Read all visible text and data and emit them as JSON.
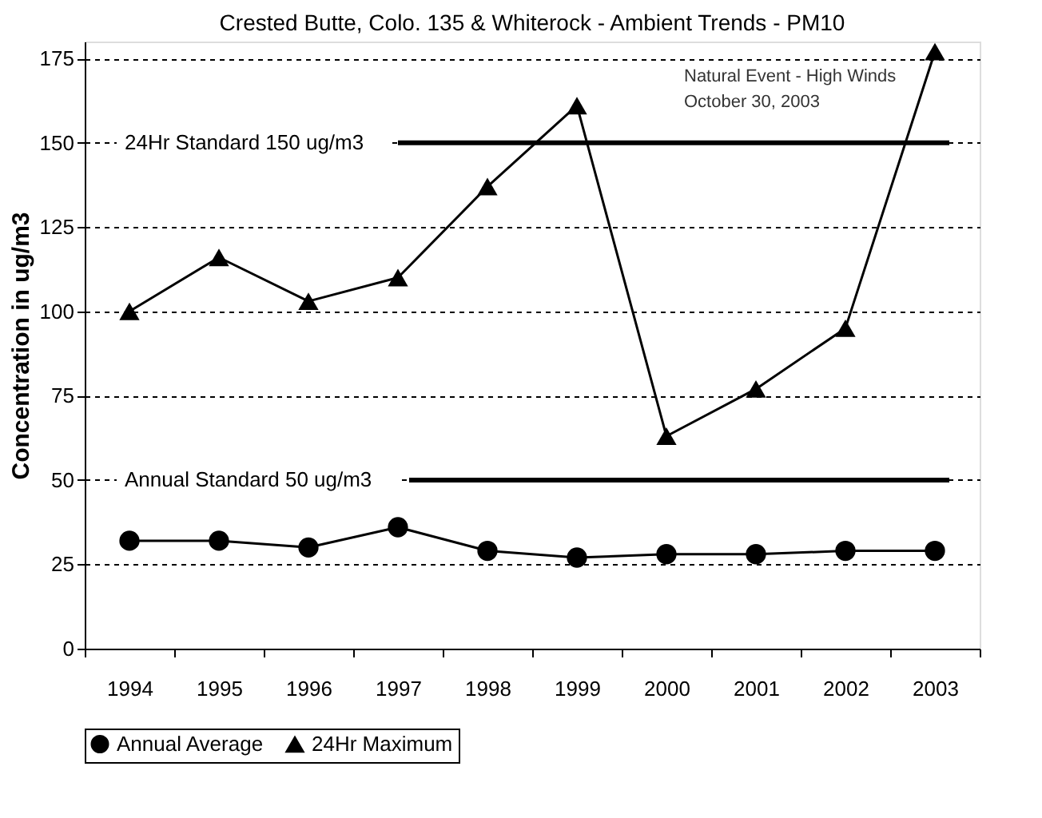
{
  "chart_data": {
    "type": "line",
    "title": "Crested Butte, Colo. 135 & Whiterock - Ambient Trends - PM10",
    "ylabel": "Concentration in ug/m3",
    "categories": [
      "1994",
      "1995",
      "1996",
      "1997",
      "1998",
      "1999",
      "2000",
      "2001",
      "2002",
      "2003"
    ],
    "series": [
      {
        "name": "Annual Average",
        "color": "#000000",
        "marker": "circle",
        "values": [
          32,
          32,
          30,
          36,
          29,
          27,
          28,
          28,
          29,
          29
        ]
      },
      {
        "name": "24Hr Maximum",
        "color": "#000000",
        "marker": "triangle",
        "values": [
          100,
          116,
          103,
          110,
          137,
          161,
          63,
          77,
          95,
          177
        ]
      }
    ],
    "ylim": [
      0,
      180
    ],
    "yticks": [
      0,
      25,
      50,
      75,
      100,
      125,
      150,
      175
    ],
    "grid": "y",
    "legend": "bottom",
    "line_style": "solid",
    "ref_lines": [
      {
        "axis": "y",
        "value": 150,
        "label": "24Hr Standard 150 ug/m3",
        "color": "#000000"
      },
      {
        "axis": "y",
        "value": 50,
        "label": "Annual Standard 50 ug/m3",
        "color": "#000000"
      }
    ],
    "annotations": [
      "Natural Event - High Winds\nOctober 30, 2003"
    ]
  }
}
